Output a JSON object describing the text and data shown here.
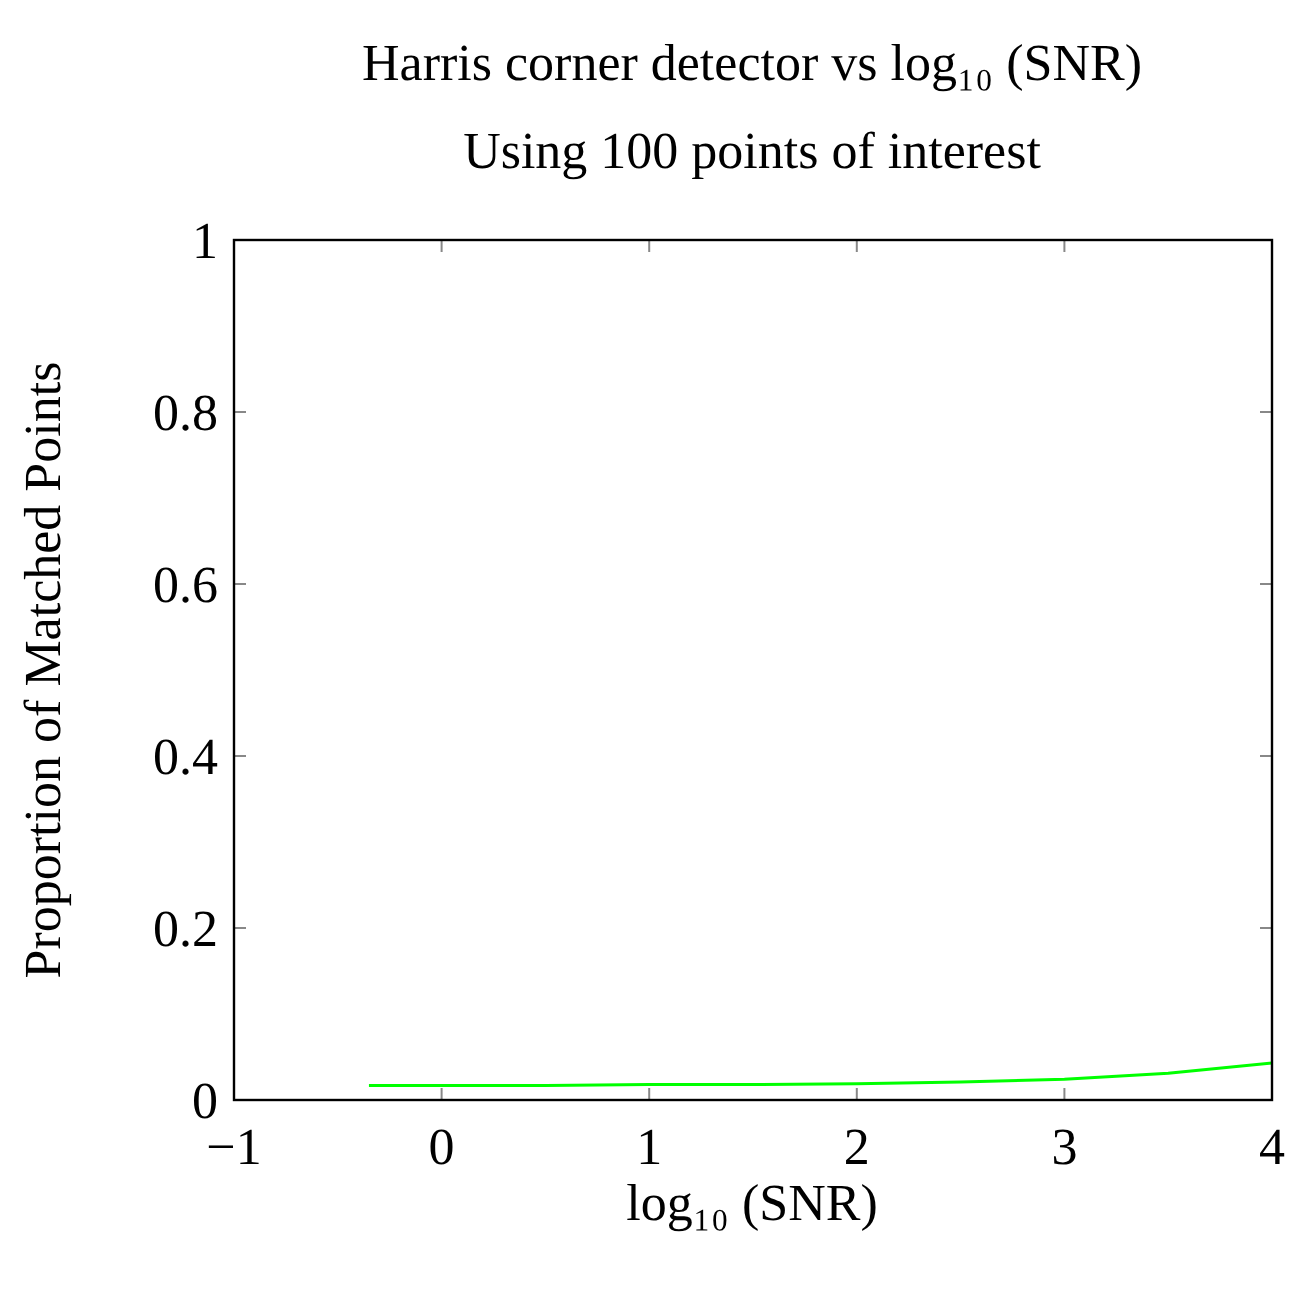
{
  "chart_data": {
    "type": "line",
    "title": "Harris corner detector vs log₁₀ (SNR)",
    "subtitle": "Using 100 points of interest",
    "xlabel": "log₁₀ (SNR)",
    "ylabel": "Proportion of Matched Points",
    "x": [
      -0.35,
      0,
      0.5,
      1,
      1.5,
      2,
      2.5,
      3,
      3.5,
      4
    ],
    "series": [
      {
        "color": "#00ff00",
        "values": [
          0.017,
          0.017,
          0.017,
          0.018,
          0.018,
          0.019,
          0.021,
          0.024,
          0.031,
          0.043
        ]
      }
    ],
    "xlim": [
      -1,
      4
    ],
    "xticks": [
      {
        "value": -1,
        "label": "−1"
      },
      0,
      1,
      2,
      3,
      4
    ],
    "ylim": [
      0,
      1
    ],
    "yticks": [
      0,
      0.2,
      0.4,
      0.6,
      0.8,
      1
    ],
    "grid": false,
    "marker": "none",
    "line_style": "solid"
  }
}
